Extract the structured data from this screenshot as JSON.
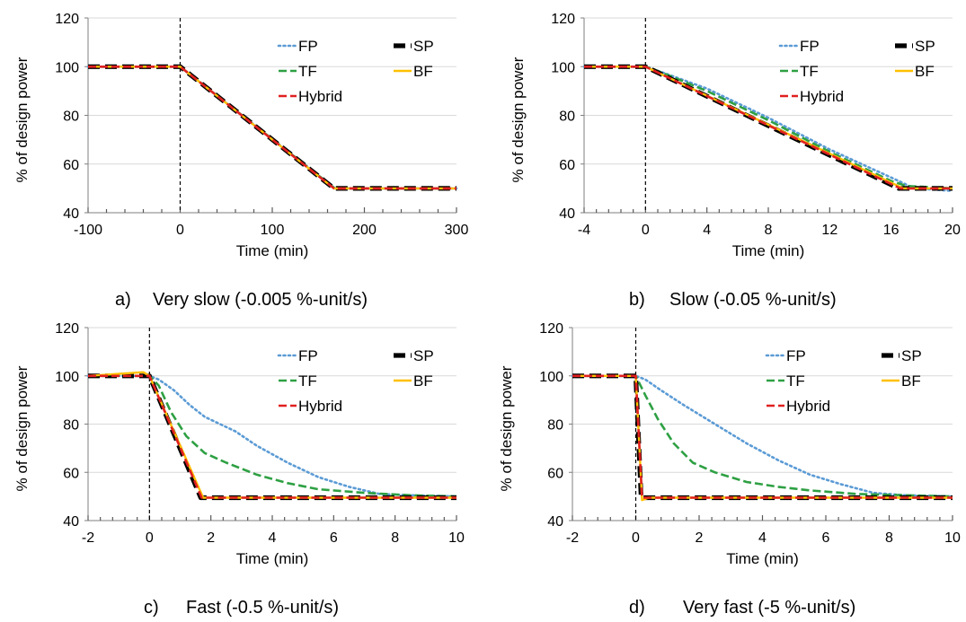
{
  "chart_data": [
    {
      "type": "line",
      "caption_letter": "a)",
      "caption": "Very slow (-0.005 %-unit/s)",
      "xlabel": "Time (min)",
      "ylabel": "% of design power",
      "xlim": [
        -100,
        300
      ],
      "ylim": [
        40,
        120
      ],
      "xticks": [
        -100,
        0,
        100,
        200,
        300
      ],
      "yticks": [
        40,
        60,
        80,
        100,
        120
      ],
      "grid": "horizontal",
      "legend_placement": "top-right",
      "series": [
        {
          "name": "FP",
          "style": "dotted",
          "color": "#5B9BD5",
          "x": [
            -100,
            0,
            168,
            300
          ],
          "y": [
            100,
            100,
            50,
            50
          ]
        },
        {
          "name": "SP",
          "style": "dashed-thick",
          "color": "#000000",
          "x": [
            -100,
            0,
            167,
            300
          ],
          "y": [
            100,
            100,
            50,
            50
          ]
        },
        {
          "name": "TF",
          "style": "dashed",
          "color": "#2EA043",
          "x": [
            -100,
            0,
            168,
            300
          ],
          "y": [
            100,
            100,
            50,
            50
          ]
        },
        {
          "name": "BF",
          "style": "solid",
          "color": "#FFC000",
          "x": [
            -100,
            0,
            167,
            300
          ],
          "y": [
            100,
            100,
            50,
            50
          ]
        },
        {
          "name": "Hybrid",
          "style": "dashed",
          "color": "#E02020",
          "x": [
            -100,
            0,
            167,
            300
          ],
          "y": [
            100,
            100,
            50,
            50
          ]
        }
      ]
    },
    {
      "type": "line",
      "caption_letter": "b)",
      "caption": "Slow (-0.05 %-unit/s)",
      "xlabel": "Time (min)",
      "ylabel": "% of design power",
      "xlim": [
        -4,
        20
      ],
      "ylim": [
        40,
        120
      ],
      "xticks": [
        -4,
        0,
        4,
        8,
        12,
        16,
        20
      ],
      "yticks": [
        40,
        60,
        80,
        100,
        120
      ],
      "grid": "horizontal",
      "legend_placement": "top-right",
      "series": [
        {
          "name": "FP",
          "style": "dotted",
          "color": "#5B9BD5",
          "x": [
            -4,
            0,
            0.5,
            4,
            8,
            12,
            16.5,
            17.5,
            20
          ],
          "y": [
            100,
            100,
            99,
            91,
            79,
            66,
            53,
            50,
            49
          ]
        },
        {
          "name": "SP",
          "style": "dashed-thick",
          "color": "#000000",
          "x": [
            -4,
            0,
            16.5,
            20
          ],
          "y": [
            100,
            100,
            50,
            50
          ]
        },
        {
          "name": "TF",
          "style": "dashed",
          "color": "#2EA043",
          "x": [
            -4,
            0,
            0.5,
            4,
            8,
            12,
            16,
            17,
            20
          ],
          "y": [
            100,
            100,
            99,
            90,
            78,
            65,
            53,
            51,
            50
          ]
        },
        {
          "name": "BF",
          "style": "solid",
          "color": "#FFC000",
          "x": [
            -4,
            0,
            16.8,
            20
          ],
          "y": [
            100,
            100,
            50,
            50
          ]
        },
        {
          "name": "Hybrid",
          "style": "dashed",
          "color": "#E02020",
          "x": [
            -4,
            0,
            16.6,
            20
          ],
          "y": [
            100,
            100,
            50,
            50
          ]
        }
      ]
    },
    {
      "type": "line",
      "caption_letter": "c)",
      "caption": "Fast (-0.5 %-unit/s)",
      "xlabel": "Time (min)",
      "ylabel": "% of design power",
      "xlim": [
        -2,
        10
      ],
      "ylim": [
        40,
        120
      ],
      "xticks": [
        -2,
        0,
        2,
        4,
        6,
        8,
        10
      ],
      "yticks": [
        40,
        60,
        80,
        100,
        120
      ],
      "grid": "horizontal",
      "legend_placement": "top-right",
      "series": [
        {
          "name": "FP",
          "style": "dotted",
          "color": "#5B9BD5",
          "x": [
            -2,
            0,
            0.3,
            0.8,
            1.3,
            1.8,
            2.3,
            2.8,
            3.5,
            4.5,
            5.5,
            6.5,
            7.5,
            8.5,
            10
          ],
          "y": [
            100,
            100,
            98.5,
            94,
            88,
            83,
            80,
            77,
            71,
            64,
            58,
            54,
            51,
            50.5,
            50
          ]
        },
        {
          "name": "SP",
          "style": "dashed-thick",
          "color": "#000000",
          "x": [
            -2,
            0,
            1.67,
            10
          ],
          "y": [
            100,
            100,
            49.5,
            49.5
          ]
        },
        {
          "name": "TF",
          "style": "dashed",
          "color": "#2EA043",
          "x": [
            -2,
            0,
            0.3,
            0.7,
            1.2,
            1.8,
            2.5,
            3.5,
            4.5,
            5.5,
            7,
            8.5,
            10
          ],
          "y": [
            100,
            100,
            96,
            85,
            75,
            68,
            64,
            59,
            55.5,
            53,
            51.5,
            50.5,
            50
          ]
        },
        {
          "name": "BF",
          "style": "solid",
          "color": "#FFC000",
          "x": [
            -2,
            -0.2,
            0,
            1.75,
            10
          ],
          "y": [
            100,
            101.5,
            100,
            49.5,
            49.5
          ]
        },
        {
          "name": "Hybrid",
          "style": "dashed",
          "color": "#E02020",
          "x": [
            -2,
            0,
            1.7,
            10
          ],
          "y": [
            100,
            100,
            49.5,
            49.5
          ]
        }
      ]
    },
    {
      "type": "line",
      "caption_letter": "d)",
      "caption": "Very fast (-5 %-unit/s)",
      "xlabel": "Time (min)",
      "ylabel": "% of design power",
      "xlim": [
        -2,
        10
      ],
      "ylim": [
        40,
        120
      ],
      "xticks": [
        -2,
        0,
        2,
        4,
        6,
        8,
        10
      ],
      "yticks": [
        40,
        60,
        80,
        100,
        120
      ],
      "grid": "horizontal",
      "legend_placement": "top-right",
      "series": [
        {
          "name": "FP",
          "style": "dotted",
          "color": "#5B9BD5",
          "x": [
            -2,
            0,
            0.3,
            0.8,
            1.5,
            2.5,
            3.5,
            4.5,
            5.5,
            6.5,
            7.5,
            8.5,
            10
          ],
          "y": [
            100,
            100,
            98.5,
            94,
            88,
            80,
            72,
            65,
            59,
            55,
            51.5,
            50.5,
            50
          ]
        },
        {
          "name": "SP",
          "style": "dashed-thick",
          "color": "#000000",
          "x": [
            -2,
            0,
            0.17,
            10
          ],
          "y": [
            100,
            100,
            49.5,
            49.5
          ]
        },
        {
          "name": "TF",
          "style": "dashed",
          "color": "#2EA043",
          "x": [
            -2,
            0,
            0.3,
            0.7,
            1.2,
            1.8,
            2.5,
            3.5,
            4.5,
            5.5,
            7,
            8.5,
            10
          ],
          "y": [
            100,
            100,
            92,
            82,
            72,
            64,
            60,
            56,
            54,
            52.5,
            51,
            50.5,
            50
          ]
        },
        {
          "name": "BF",
          "style": "solid",
          "color": "#FFC000",
          "x": [
            -2,
            0,
            0.2,
            0.4,
            10
          ],
          "y": [
            100,
            100,
            48.5,
            49.5,
            49.5
          ]
        },
        {
          "name": "Hybrid",
          "style": "dashed",
          "color": "#E02020",
          "x": [
            -2,
            0,
            0.2,
            10
          ],
          "y": [
            100,
            100,
            49.5,
            49.5
          ]
        }
      ]
    }
  ]
}
